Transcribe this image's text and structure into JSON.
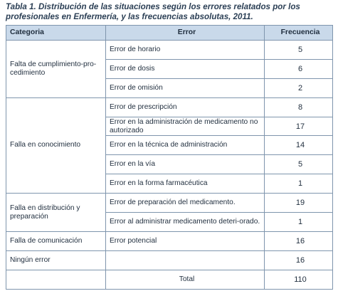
{
  "caption": "Tabla 1. Distribución de las situaciones según los errores relatados por los profesionales en Enfermería, y las frecuencias absolutas, 2011.",
  "headers": {
    "category": "Categoria",
    "error": "Error",
    "frequency": "Frecuencia"
  },
  "groups": [
    {
      "category": "Falta de cumplimiento-pro-cedimiento",
      "rows": [
        {
          "error": "Error de horario",
          "frequency": "5"
        },
        {
          "error": "Error de dosis",
          "frequency": "6"
        },
        {
          "error": "Error de omisión",
          "frequency": "2"
        }
      ]
    },
    {
      "category": "Falla en conocimiento",
      "rows": [
        {
          "error": "Error de prescripción",
          "frequency": "8"
        },
        {
          "error": "Error en la administración de medicamento no autorizado",
          "frequency": "17"
        },
        {
          "error": "Error en la técnica de administración",
          "frequency": "14"
        },
        {
          "error": "Error en la vía",
          "frequency": "5"
        },
        {
          "error": "Error en la forma farmacéutica",
          "frequency": "1"
        }
      ]
    },
    {
      "category": "Falla en distribución y preparación",
      "rows": [
        {
          "error": "Error de preparación del medicamento.",
          "frequency": "19"
        },
        {
          "error": "Error al administrar medicamento deteri-orado.",
          "frequency": "1"
        }
      ]
    },
    {
      "category": "Falla de comunicación",
      "rows": [
        {
          "error": "Error potencial",
          "frequency": "16"
        }
      ]
    },
    {
      "category": "Ningún error",
      "rows": [
        {
          "error": "",
          "frequency": "16"
        }
      ]
    }
  ],
  "total": {
    "label": "Total",
    "frequency": "110"
  }
}
